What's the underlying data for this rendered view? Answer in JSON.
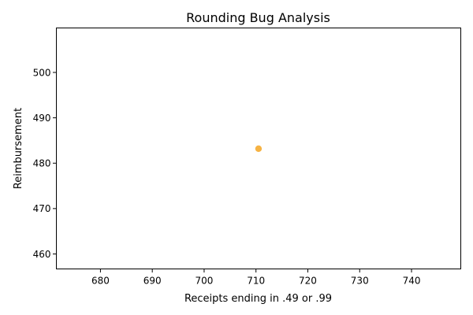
{
  "chart_data": {
    "type": "scatter",
    "title": "Rounding Bug Analysis",
    "xlabel": "Receipts ending in .49 or .99",
    "ylabel": "Reimbursement",
    "xlim": [
      671.5,
      749.5
    ],
    "ylim": [
      456.7,
      509.8
    ],
    "xticks": [
      680,
      690,
      700,
      710,
      720,
      730,
      740
    ],
    "yticks": [
      460,
      470,
      480,
      490,
      500
    ],
    "grid": false,
    "points": [
      {
        "x": 710.49,
        "y": 483.2
      }
    ],
    "point_color": "#f5a623"
  }
}
